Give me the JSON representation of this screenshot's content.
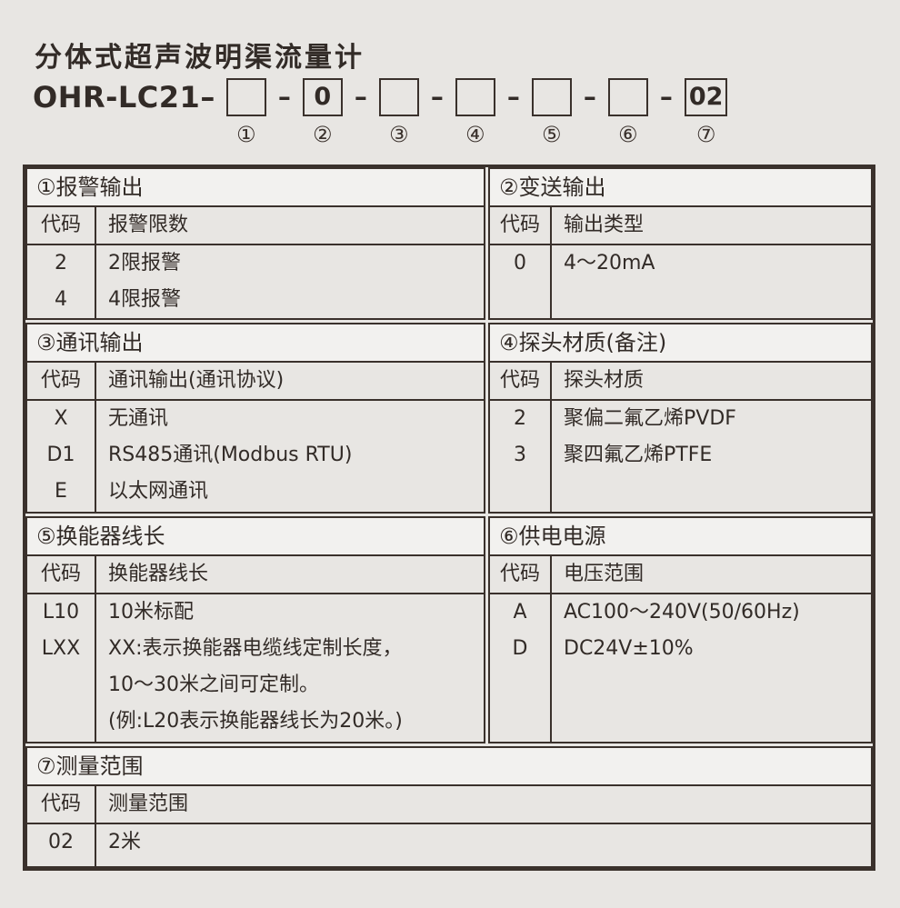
{
  "page_title": "分体式超声波明渠流量计",
  "model": {
    "prefix": "OHR-LC21–",
    "separator": "–",
    "boxes": [
      {
        "value": "",
        "index": "①"
      },
      {
        "value": "0",
        "index": "②"
      },
      {
        "value": "",
        "index": "③"
      },
      {
        "value": "",
        "index": "④"
      },
      {
        "value": "",
        "index": "⑤"
      },
      {
        "value": "",
        "index": "⑥"
      },
      {
        "value": "02",
        "index": "⑦"
      }
    ]
  },
  "colors": {
    "background": "#e8e6e3",
    "section_title_background": "#f2f1ef",
    "border": "#3a312c",
    "text": "#322b27"
  },
  "sections": [
    {
      "id": 1,
      "title": "①报警输出",
      "code_header": "代码",
      "desc_header": "报警限数",
      "rows": [
        {
          "code": "2",
          "desc": "2限报警"
        },
        {
          "code": "4",
          "desc": "4限报警"
        }
      ]
    },
    {
      "id": 2,
      "title": "②变送输出",
      "code_header": "代码",
      "desc_header": "输出类型",
      "rows": [
        {
          "code": "0",
          "desc": "4～20mA"
        }
      ]
    },
    {
      "id": 3,
      "title": "③通讯输出",
      "code_header": "代码",
      "desc_header": "通讯输出(通讯协议)",
      "rows": [
        {
          "code": "X",
          "desc": "无通讯"
        },
        {
          "code": "D1",
          "desc": "RS485通讯(Modbus RTU)"
        },
        {
          "code": "E",
          "desc": "以太网通讯"
        }
      ]
    },
    {
      "id": 4,
      "title": "④探头材质(备注)",
      "code_header": "代码",
      "desc_header": "探头材质",
      "rows": [
        {
          "code": "2",
          "desc": "聚偏二氟乙烯PVDF"
        },
        {
          "code": "3",
          "desc": "聚四氟乙烯PTFE"
        }
      ]
    },
    {
      "id": 5,
      "title": "⑤换能器线长",
      "code_header": "代码",
      "desc_header": "换能器线长",
      "rows": [
        {
          "code": "L10",
          "desc": "10米标配"
        },
        {
          "code": "LXX",
          "desc": [
            "XX:表示换能器电缆线定制长度，",
            "10～30米之间可定制。",
            "(例:L20表示换能器线长为20米。)"
          ]
        }
      ]
    },
    {
      "id": 6,
      "title": "⑥供电电源",
      "code_header": "代码",
      "desc_header": "电压范围",
      "rows": [
        {
          "code": "A",
          "desc": "AC100～240V(50/60Hz)"
        },
        {
          "code": "D",
          "desc": "DC24V±10%"
        }
      ]
    },
    {
      "id": 7,
      "title": "⑦测量范围",
      "code_header": "代码",
      "desc_header": "测量范围",
      "rows": [
        {
          "code": "02",
          "desc": "2米"
        }
      ]
    }
  ]
}
